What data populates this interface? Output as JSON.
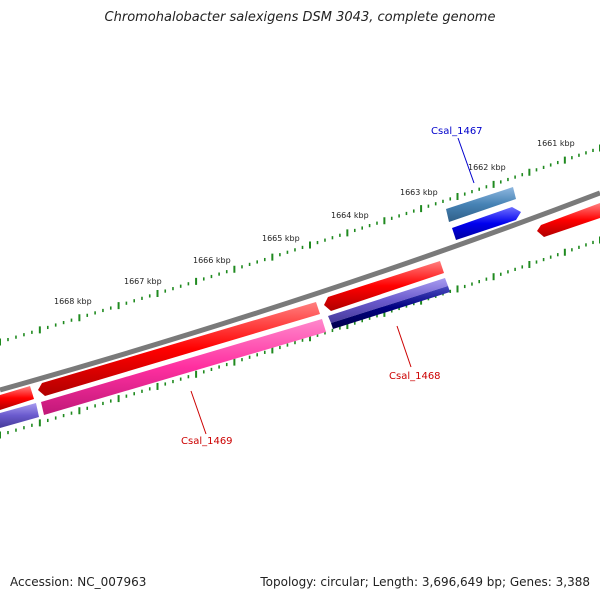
{
  "title": "Chromohalobacter salexigens DSM 3043, complete genome",
  "footer": {
    "accession": "Accession: NC_007963",
    "summary": "Topology: circular; Length: 3,696,649 bp; Genes: 3,388"
  },
  "scale_labels": [
    "1661 kbp",
    "1662 kbp",
    "1663 kbp",
    "1664 kbp",
    "1665 kbp",
    "1666 kbp",
    "1667 kbp",
    "1668 kbp"
  ],
  "genes": [
    {
      "id": "csal-1467",
      "label": "Csal_1467",
      "color": "#0000cc"
    },
    {
      "id": "csal-1468",
      "label": "Csal_1468",
      "color": "#cc0000"
    },
    {
      "id": "csal-1469",
      "label": "Csal_1469",
      "color": "#cc0000"
    }
  ],
  "colors": {
    "backbone": "#808080",
    "tick": "#1f8a1f",
    "forward_strand": "#ff0000",
    "reverse_strand": "#0000ee",
    "cog_pink": "#ff2fa0",
    "cog_purple": "#6a5acd",
    "cog_navy": "#000080",
    "cog_steelblue": "#4682b4"
  }
}
